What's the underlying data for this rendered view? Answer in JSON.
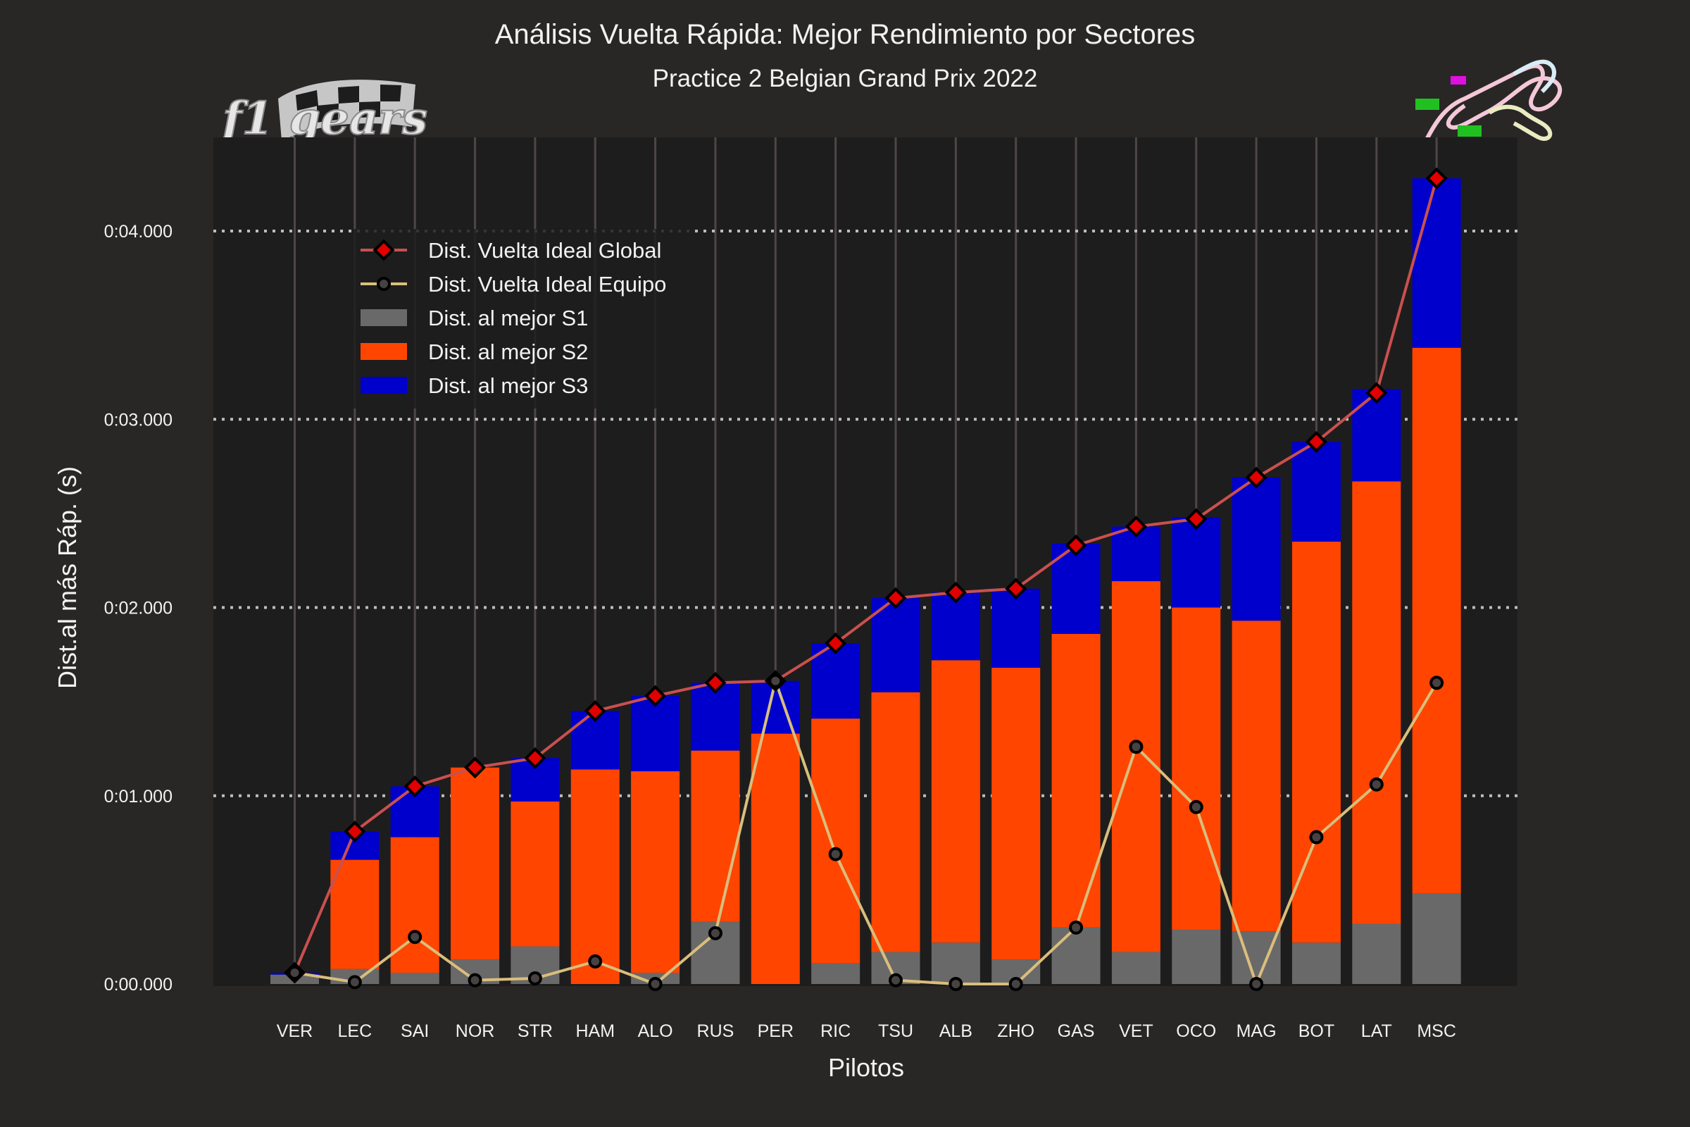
{
  "colors": {
    "background": "#292626",
    "plot_bg": "#1e1d1d",
    "s1": "#6a6969",
    "s2": "#ff4500",
    "s3": "#0000cd",
    "global_line": "#c9504f",
    "global_marker": "#e00000",
    "team_line": "#d9be7c",
    "team_marker": "#474242",
    "vgrid": "#4e4646",
    "hgrid": "#bdbdbd"
  },
  "logo": {
    "brand_text": "f1 gears",
    "flag_icon": "checkered-flag-icon"
  },
  "track_map": {
    "icon": "circuit-spa-icon"
  },
  "chart_data": {
    "type": "bar",
    "stacked": true,
    "title": "Análisis Vuelta Rápida: Mejor Rendimiento por Sectores",
    "subtitle": "Practice 2 Belgian Grand Prix 2022",
    "xlabel": "Pilotos",
    "ylabel": "Dist.al más Ráp. (s)",
    "ylim": [
      0,
      0.045
    ],
    "yticks": [
      0,
      0.01,
      0.02,
      0.03,
      0.04
    ],
    "ytick_labels": [
      "0:00.000",
      "0:01.000",
      "0:02.000",
      "0:03.000",
      "0:04.000"
    ],
    "grid": true,
    "legend_position": "upper-left",
    "categories": [
      "VER",
      "LEC",
      "SAI",
      "NOR",
      "STR",
      "HAM",
      "ALO",
      "RUS",
      "PER",
      "RIC",
      "TSU",
      "ALB",
      "ZHO",
      "GAS",
      "VET",
      "OCO",
      "MAG",
      "BOT",
      "LAT",
      "MSC"
    ],
    "series": [
      {
        "name": "Dist. al mejor S1",
        "kind": "bar",
        "values": [
          0.0005,
          0.0008,
          0.0006,
          0.0013,
          0.002,
          0.0,
          0.0006,
          0.0033,
          0.0,
          0.0011,
          0.0017,
          0.0022,
          0.0013,
          0.003,
          0.0017,
          0.0029,
          0.0028,
          0.0022,
          0.0032,
          0.0048
        ]
      },
      {
        "name": "Dist. al mejor S2",
        "kind": "bar",
        "values": [
          0.0,
          0.0058,
          0.0072,
          0.0102,
          0.0077,
          0.0114,
          0.0107,
          0.0091,
          0.0133,
          0.013,
          0.0138,
          0.015,
          0.0155,
          0.0156,
          0.0197,
          0.0171,
          0.0165,
          0.0213,
          0.0235,
          0.029
        ]
      },
      {
        "name": "Dist. al mejor S3",
        "kind": "bar",
        "values": [
          0.0001,
          0.0015,
          0.0027,
          0.0,
          0.0023,
          0.0031,
          0.004,
          0.0036,
          0.0028,
          0.004,
          0.005,
          0.0036,
          0.0042,
          0.0048,
          0.0029,
          0.0048,
          0.0076,
          0.0053,
          0.0049,
          0.009
        ]
      },
      {
        "name": "Dist. Vuelta Ideal Global",
        "kind": "line",
        "values": [
          0.0006,
          0.0081,
          0.0105,
          0.0115,
          0.012,
          0.0145,
          0.0153,
          0.016,
          0.0161,
          0.0181,
          0.0205,
          0.0208,
          0.021,
          0.0233,
          0.0243,
          0.0247,
          0.0269,
          0.0288,
          0.0314,
          0.0428
        ]
      },
      {
        "name": "Dist. Vuelta Ideal Equipo",
        "kind": "line",
        "values": [
          0.0006,
          0.0001,
          0.0025,
          0.0002,
          0.0003,
          0.0012,
          0.0,
          0.0027,
          0.0161,
          0.0069,
          0.0002,
          0.0,
          0.0,
          0.003,
          0.0126,
          0.0094,
          0.0,
          0.0078,
          0.0106,
          0.016
        ]
      }
    ],
    "legend": [
      "Dist. Vuelta Ideal Global",
      "Dist. Vuelta Ideal Equipo",
      "Dist. al mejor S1",
      "Dist. al mejor S2",
      "Dist. al mejor S3"
    ]
  }
}
